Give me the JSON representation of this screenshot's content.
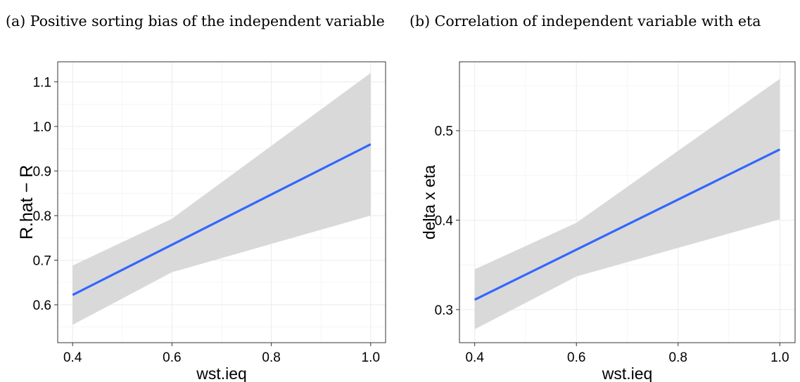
{
  "captions": {
    "a": "(a) Positive sorting bias of the independent variable",
    "b": "(b) Correlation of independent variable with eta"
  },
  "colors": {
    "line": "#3366FF",
    "band": "#D9D9D9",
    "grid": "#EBEBEB",
    "panel_border": "#333333"
  },
  "chart_data": [
    {
      "type": "line",
      "title": "(a) Positive sorting bias of the independent variable",
      "xlabel": "wst.ieq",
      "ylabel": "R.hat − R",
      "xlim": [
        0.37,
        1.03
      ],
      "ylim": [
        0.515,
        1.145
      ],
      "xticks": [
        0.4,
        0.6,
        0.8,
        1.0
      ],
      "xtick_labels": [
        "0.4",
        "0.6",
        "0.8",
        "1.0"
      ],
      "yticks": [
        0.6,
        0.7,
        0.8,
        0.9,
        1.0,
        1.1
      ],
      "ytick_labels": [
        "0.6",
        "0.7",
        "0.8",
        "0.9",
        "1.0",
        "1.1"
      ],
      "grid": true,
      "series": [
        {
          "x": [
            0.4,
            1.0
          ],
          "y": [
            0.622,
            0.96
          ]
        }
      ],
      "band": {
        "x": [
          0.4,
          0.6,
          1.0
        ],
        "lower": [
          0.555,
          0.673,
          0.8
        ],
        "upper": [
          0.688,
          0.793,
          1.12
        ]
      }
    },
    {
      "type": "line",
      "title": "(b) Correlation of independent variable with eta",
      "xlabel": "wst.ieq",
      "ylabel": "delta x eta",
      "xlim": [
        0.37,
        1.03
      ],
      "ylim": [
        0.263,
        0.577
      ],
      "xticks": [
        0.4,
        0.6,
        0.8,
        1.0
      ],
      "xtick_labels": [
        "0.4",
        "0.6",
        "0.8",
        "1.0"
      ],
      "yticks": [
        0.3,
        0.4,
        0.5
      ],
      "ytick_labels": [
        "0.3",
        "0.4",
        "0.5"
      ],
      "grid": true,
      "series": [
        {
          "x": [
            0.4,
            1.0
          ],
          "y": [
            0.311,
            0.479
          ]
        }
      ],
      "band": {
        "x": [
          0.4,
          0.6,
          1.0
        ],
        "lower": [
          0.278,
          0.337,
          0.401
        ],
        "upper": [
          0.345,
          0.397,
          0.558
        ]
      }
    }
  ]
}
